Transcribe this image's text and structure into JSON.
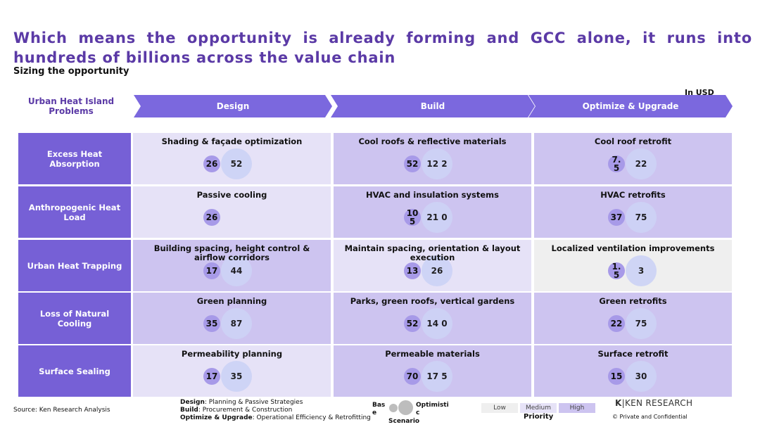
{
  "title": "Which means the opportunity is already forming and GCC alone, it runs into hundreds of billions across the value chain",
  "subtitle": "Sizing the opportunity",
  "unit_note": "In USD",
  "corner_header": "Urban Heat Island Problems",
  "columns": [
    "Design",
    "Build",
    "Optimize & Upgrade"
  ],
  "colors": {
    "row_header": "#7660d6",
    "chevron": "#7b68de",
    "low": "#efefef",
    "medium": "#e6e2f7",
    "high": "#cdc4f0",
    "base_bubble": "#a79ae8",
    "opt_bubble": "#cdd3f6",
    "title": "#5b3aa6"
  },
  "rows": [
    {
      "label": "Excess Heat Absorption",
      "cells": [
        {
          "title": "Shading & façade optimization",
          "base": "26",
          "opt": "52",
          "priority": "medium"
        },
        {
          "title": "Cool roofs & reflective materials",
          "base": "52",
          "opt": "12 2",
          "priority": "high"
        },
        {
          "title": "Cool roof retrofit",
          "base": "7. 5",
          "opt": "22",
          "priority": "high"
        }
      ]
    },
    {
      "label": "Anthropogenic Heat Load",
      "cells": [
        {
          "title": "Passive cooling",
          "base": "26",
          "opt": "",
          "priority": "medium"
        },
        {
          "title": "HVAC and insulation systems",
          "base": "10 5",
          "opt": "21 0",
          "priority": "high"
        },
        {
          "title": "HVAC retrofits",
          "base": "37",
          "opt": "75",
          "priority": "high"
        }
      ]
    },
    {
      "label": "Urban Heat Trapping",
      "cells": [
        {
          "title": "Building spacing, height control & airflow corridors",
          "base": "17",
          "opt": "44",
          "priority": "high"
        },
        {
          "title": "Maintain spacing, orientation & layout execution",
          "base": "13",
          "opt": "26",
          "priority": "medium"
        },
        {
          "title": "Localized ventilation improvements",
          "base": "1. 5",
          "opt": "3",
          "priority": "low"
        }
      ]
    },
    {
      "label": "Loss of Natural Cooling",
      "cells": [
        {
          "title": "Green planning",
          "base": "35",
          "opt": "87",
          "priority": "high"
        },
        {
          "title": "Parks, green roofs, vertical gardens",
          "base": "52",
          "opt": "14 0",
          "priority": "high"
        },
        {
          "title": "Green retrofits",
          "base": "22",
          "opt": "75",
          "priority": "high"
        }
      ]
    },
    {
      "label": "Surface Sealing",
      "cells": [
        {
          "title": "Permeability planning",
          "base": "17",
          "opt": "35",
          "priority": "medium"
        },
        {
          "title": "Permeable materials",
          "base": "70",
          "opt": "17 5",
          "priority": "high"
        },
        {
          "title": "Surface retrofit",
          "base": "15",
          "opt": "30",
          "priority": "high"
        }
      ]
    }
  ],
  "footer": {
    "source": "Source: Ken Research Analysis",
    "defs": [
      {
        "term": "Design",
        "desc": ": Planning & Passive Strategies"
      },
      {
        "term": "Build",
        "desc": ": Procurement & Construction"
      },
      {
        "term": "Optimize & Upgrade",
        "desc": ": Operational Efficiency & Retrofitting"
      }
    ],
    "scenario": {
      "base": "Base",
      "optimistic": "Optimistic",
      "title": "Scenario"
    },
    "priority": {
      "low": "Low",
      "medium": "Medium",
      "high": "High",
      "title": "Priority"
    },
    "brand": "KEN RESEARCH",
    "confidential": "©   Private and Confidential"
  }
}
